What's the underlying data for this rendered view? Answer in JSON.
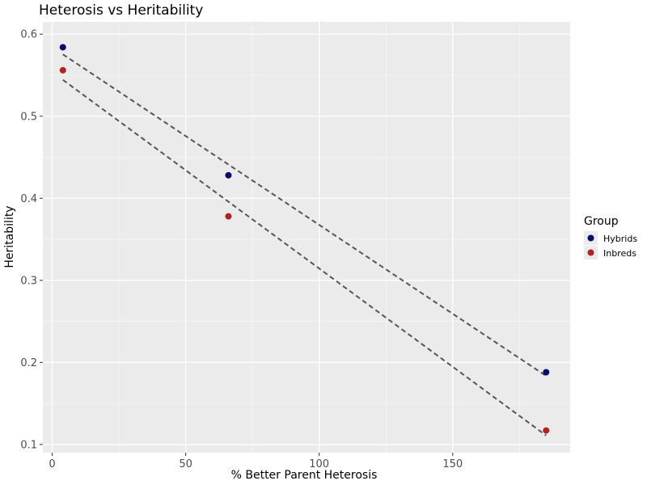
{
  "chart_data": {
    "type": "scatter",
    "title": "Heterosis vs Heritability",
    "xlabel": "% Better Parent Heterosis",
    "ylabel": "Heritability",
    "xlim": [
      -3.5,
      194
    ],
    "ylim": [
      0.09,
      0.615
    ],
    "x_ticks": [
      0,
      50,
      100,
      150
    ],
    "y_ticks": [
      0.1,
      0.2,
      0.3,
      0.4,
      0.5,
      0.6
    ],
    "x_tick_labels": [
      "0",
      "50",
      "100",
      "150"
    ],
    "y_tick_labels": [
      "0.1",
      "0.2",
      "0.3",
      "0.4",
      "0.5",
      "0.6"
    ],
    "grid": true,
    "legend": {
      "title": "Group",
      "position": "right"
    },
    "trend_lines": "dashed linear fit per series",
    "series": [
      {
        "name": "Hybrids",
        "color": "#0a0a6e",
        "x": [
          4,
          66,
          185
        ],
        "y": [
          0.584,
          0.428,
          0.188
        ]
      },
      {
        "name": "Inbreds",
        "color": "#b22222",
        "x": [
          4,
          66,
          185
        ],
        "y": [
          0.556,
          0.378,
          0.117
        ]
      }
    ]
  },
  "colors": {
    "panel_background": "#ebebeb",
    "grid_major": "#ffffff",
    "trend_line": "#555555"
  }
}
